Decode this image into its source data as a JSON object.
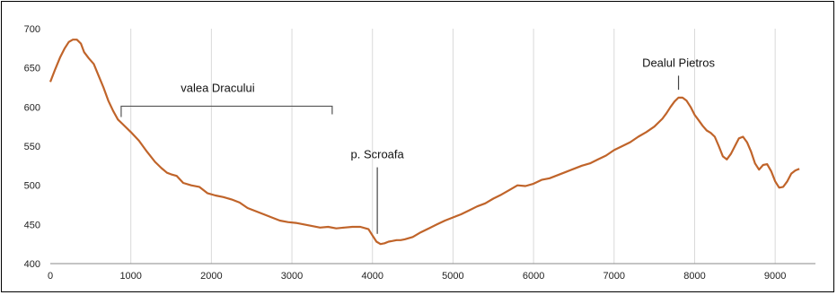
{
  "chart_data": {
    "type": "line",
    "title": "",
    "xlabel": "",
    "ylabel": "",
    "xlim": [
      0,
      9500
    ],
    "ylim": [
      400,
      700
    ],
    "grid": "vertical",
    "x_ticks": [
      0,
      1000,
      2000,
      3000,
      4000,
      5000,
      6000,
      7000,
      8000,
      9000
    ],
    "y_ticks": [
      400,
      450,
      500,
      550,
      600,
      650,
      700
    ],
    "line_color": "#c0642a",
    "series": [
      {
        "x": [
          0,
          60,
          120,
          180,
          230,
          280,
          330,
          380,
          420,
          480,
          540,
          600,
          660,
          720,
          780,
          840,
          900,
          1000,
          1100,
          1200,
          1300,
          1380,
          1450,
          1500,
          1570,
          1650,
          1750,
          1850,
          1950,
          2050,
          2150,
          2250,
          2350,
          2450,
          2550,
          2650,
          2750,
          2850,
          2950,
          3050,
          3150,
          3250,
          3350,
          3450,
          3550,
          3650,
          3750,
          3850,
          3950,
          4000,
          4050,
          4100,
          4150,
          4200,
          4250,
          4300,
          4350,
          4400,
          4500,
          4600,
          4700,
          4800,
          4900,
          5000,
          5100,
          5200,
          5300,
          5400,
          5500,
          5600,
          5700,
          5800,
          5900,
          6000,
          6100,
          6200,
          6300,
          6400,
          6500,
          6600,
          6700,
          6800,
          6900,
          7000,
          7100,
          7200,
          7300,
          7400,
          7500,
          7600,
          7650,
          7700,
          7750,
          7800,
          7850,
          7900,
          7950,
          8000,
          8050,
          8100,
          8150,
          8200,
          8250,
          8300,
          8350,
          8400,
          8450,
          8500,
          8550,
          8600,
          8650,
          8700,
          8750,
          8800,
          8850,
          8900,
          8950,
          9000,
          9050,
          9100,
          9150,
          9200,
          9250,
          9300
        ],
        "y": [
          632,
          648,
          663,
          675,
          683,
          686,
          686,
          681,
          670,
          662,
          655,
          640,
          625,
          608,
          595,
          584,
          578,
          568,
          557,
          543,
          530,
          522,
          516,
          514,
          512,
          503,
          500,
          498,
          490,
          487,
          485,
          482,
          478,
          471,
          467,
          463,
          459,
          455,
          453,
          452,
          450,
          448,
          446,
          447,
          445,
          446,
          447,
          447,
          444,
          436,
          428,
          425,
          426,
          428,
          429,
          430,
          430,
          431,
          434,
          440,
          445,
          450,
          455,
          459,
          463,
          468,
          473,
          477,
          483,
          488,
          494,
          500,
          499,
          502,
          507,
          509,
          513,
          517,
          521,
          525,
          528,
          533,
          538,
          545,
          550,
          555,
          562,
          568,
          575,
          585,
          592,
          600,
          607,
          612,
          612,
          608,
          600,
          590,
          583,
          576,
          570,
          567,
          562,
          550,
          537,
          533,
          540,
          550,
          560,
          562,
          555,
          543,
          528,
          520,
          526,
          527,
          518,
          505,
          497,
          498,
          505,
          515,
          519,
          521
        ]
      }
    ],
    "annotations": [
      {
        "label": "valea Dracului",
        "type": "bracket",
        "x_start": 880,
        "x_end": 3500,
        "y": 601
      },
      {
        "label": "p. Scroafa",
        "type": "pointer",
        "x": 4060,
        "y_from": 523,
        "y_to": 438
      },
      {
        "label": "Dealul Pietros",
        "type": "pointer",
        "x": 7800,
        "y_from": 640,
        "y_to": 622
      }
    ]
  }
}
